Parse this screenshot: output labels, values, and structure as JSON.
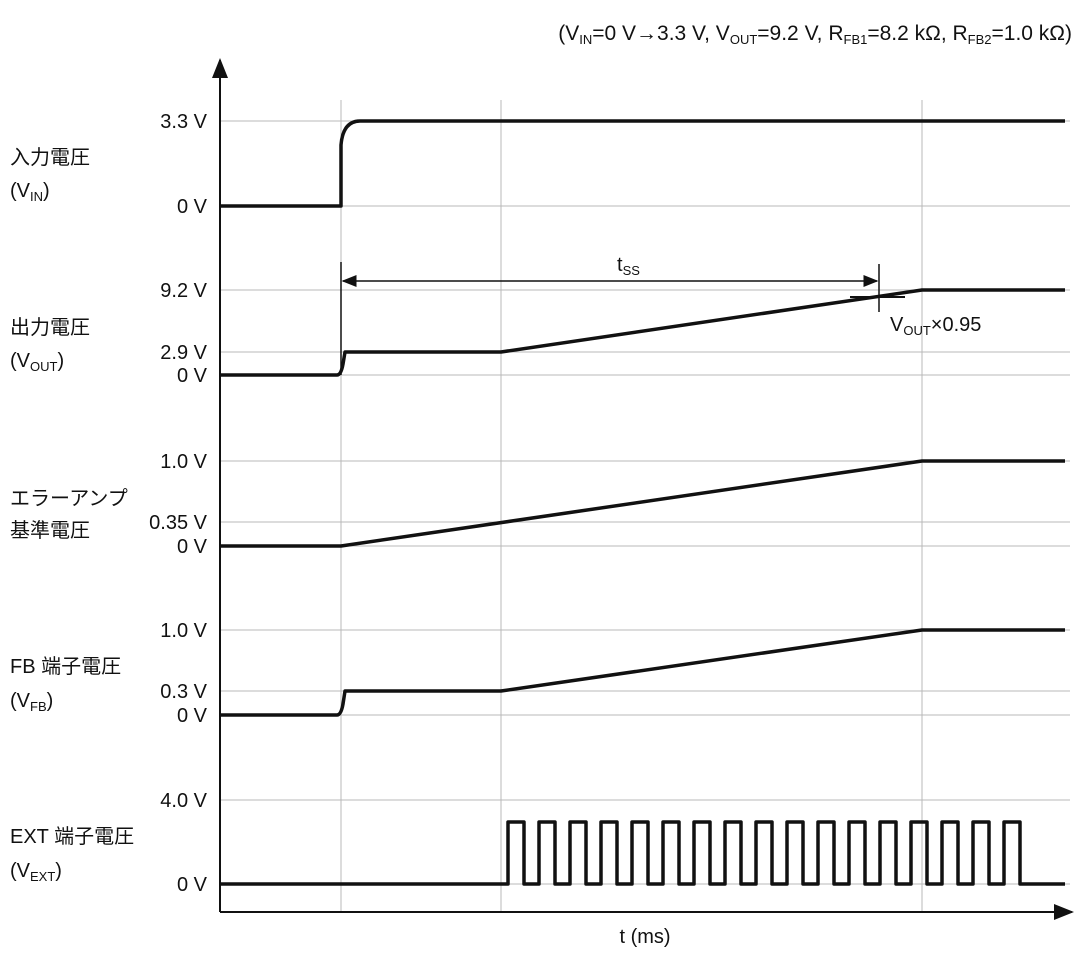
{
  "condition": {
    "open": "(V",
    "vin_sub": "IN",
    "vin_val": "=0 V→3.3 V, V",
    "vout_sub": "OUT",
    "vout_val": "=9.2 V, R",
    "rfb1_sub": "FB1",
    "rfb1_val": "=8.2 kΩ, R",
    "rfb2_sub": "FB2",
    "rfb2_val": "=1.0 kΩ)"
  },
  "axis": {
    "x_label": "t (ms)"
  },
  "panels": [
    {
      "id": "vin",
      "name_line1": "入力電圧",
      "name_line2_main": "(V",
      "name_line2_sub": "IN",
      "name_line2_end": ")",
      "ticks": [
        "3.3 V",
        "0 V"
      ]
    },
    {
      "id": "vout",
      "name_line1": "出力電圧",
      "name_line2_main": "(V",
      "name_line2_sub": "OUT",
      "name_line2_end": ")",
      "ticks": [
        "9.2 V",
        "2.9 V",
        "0 V"
      ]
    },
    {
      "id": "ref",
      "name_line1": "エラーアンプ",
      "name_line2_main": "基準電圧",
      "ticks": [
        "1.0 V",
        "0.35 V",
        "0 V"
      ]
    },
    {
      "id": "fb",
      "name_line1": "FB 端子電圧",
      "name_line2_main": "(V",
      "name_line2_sub": "FB",
      "name_line2_end": ")",
      "ticks": [
        "1.0 V",
        "0.3 V",
        "0 V"
      ]
    },
    {
      "id": "ext",
      "name_line1": "EXT 端子電圧",
      "name_line2_main": "(V",
      "name_line2_sub": "EXT",
      "name_line2_end": ")",
      "ticks": [
        "4.0 V",
        "0 V"
      ]
    }
  ],
  "annotations": {
    "tss_main": "t",
    "tss_sub": "SS",
    "vout95_main": "V",
    "vout95_sub": "OUT",
    "vout95_end": "×0.95"
  },
  "ext_pulse_count": 17
}
